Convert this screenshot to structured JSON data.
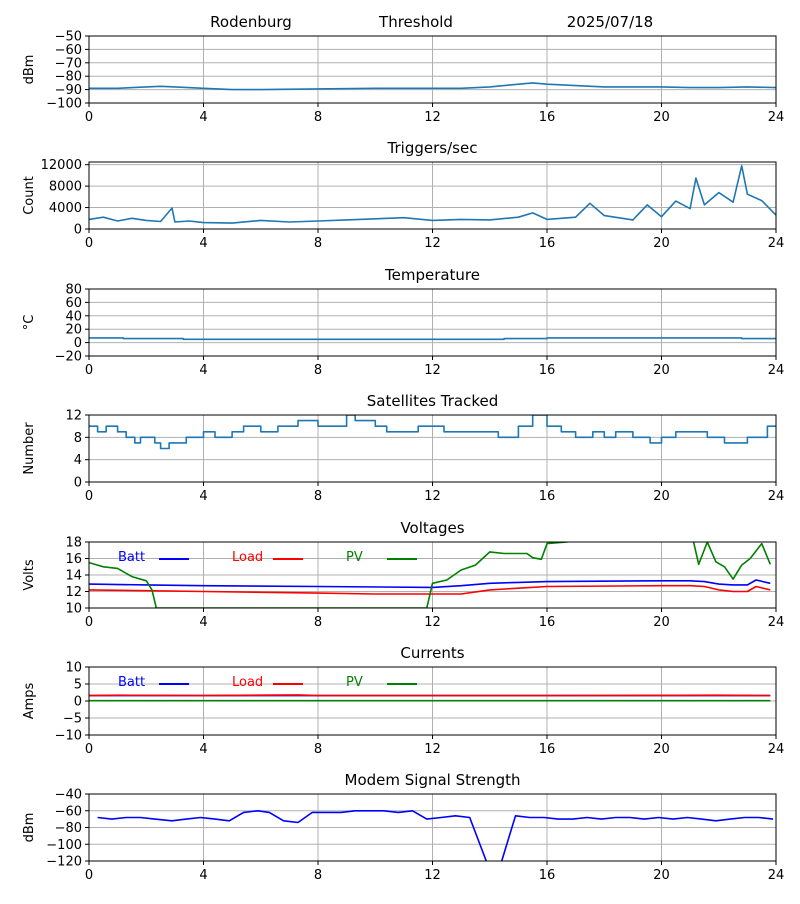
{
  "header": {
    "station": "Rodenburg",
    "mode": "Threshold",
    "date": "2025/07/18"
  },
  "chart_data": [
    {
      "id": "threshold",
      "type": "line",
      "title": "",
      "xlabel": "",
      "ylabel": "dBm",
      "xlim": [
        0,
        24
      ],
      "ylim": [
        -100,
        -50
      ],
      "xticks": [
        0,
        4,
        8,
        12,
        16,
        20,
        24
      ],
      "yticks": [
        -100,
        -90,
        -80,
        -70,
        -60,
        -50
      ],
      "grid": true,
      "series": [
        {
          "color": "#1f77b4",
          "x": [
            0,
            1,
            2,
            2.5,
            3,
            4,
            5,
            6,
            8,
            10,
            12,
            13,
            14,
            15,
            15.5,
            16,
            17,
            18,
            19,
            20,
            21,
            22,
            23,
            24
          ],
          "y": [
            -89,
            -89,
            -88,
            -87.5,
            -88,
            -89,
            -90,
            -90,
            -89.5,
            -89,
            -89,
            -89,
            -88,
            -86,
            -85,
            -86,
            -87,
            -88,
            -88,
            -88,
            -88.5,
            -88.5,
            -88,
            -88.5
          ]
        }
      ]
    },
    {
      "id": "triggers",
      "type": "line",
      "title": "Triggers/sec",
      "xlabel": "",
      "ylabel": "Count",
      "xlim": [
        0,
        24
      ],
      "ylim": [
        0,
        12500
      ],
      "xticks": [
        0,
        4,
        8,
        12,
        16,
        20,
        24
      ],
      "yticks": [
        0,
        4000,
        8000,
        12000
      ],
      "grid": true,
      "series": [
        {
          "color": "#1f77b4",
          "x": [
            0,
            0.5,
            1,
            1.5,
            2,
            2.5,
            2.9,
            3,
            3.5,
            4,
            5,
            6,
            7,
            8,
            9,
            10,
            11,
            12,
            13,
            14,
            15,
            15.5,
            16,
            17,
            17.5,
            18,
            19,
            19.5,
            20,
            20.5,
            21,
            21.2,
            21.5,
            22,
            22.5,
            22.8,
            23,
            23.5,
            24
          ],
          "y": [
            1800,
            2200,
            1500,
            2000,
            1600,
            1400,
            3900,
            1300,
            1500,
            1200,
            1100,
            1600,
            1300,
            1500,
            1700,
            1900,
            2100,
            1600,
            1800,
            1700,
            2200,
            3000,
            1800,
            2200,
            4800,
            2500,
            1700,
            4500,
            2300,
            5200,
            3800,
            9500,
            4500,
            6800,
            5000,
            11800,
            6500,
            5300,
            2600
          ]
        }
      ]
    },
    {
      "id": "temperature",
      "type": "line",
      "title": "Temperature",
      "xlabel": "",
      "ylabel": "°C",
      "xlim": [
        0,
        24
      ],
      "ylim": [
        -20,
        80
      ],
      "xticks": [
        0,
        4,
        8,
        12,
        16,
        20,
        24
      ],
      "yticks": [
        -20,
        0,
        20,
        40,
        60,
        80
      ],
      "grid": true,
      "series": [
        {
          "color": "#1f77b4",
          "x": [
            0,
            1.2,
            1.2,
            3.3,
            3.3,
            14.5,
            14.5,
            16,
            16,
            22.8,
            22.8,
            24
          ],
          "y": [
            7,
            7,
            6,
            6,
            5,
            5,
            6,
            6,
            7,
            7,
            6,
            6
          ]
        }
      ]
    },
    {
      "id": "satellites",
      "type": "line",
      "title": "Satellites Tracked",
      "xlabel": "",
      "ylabel": "Number",
      "xlim": [
        0,
        24
      ],
      "ylim": [
        0,
        12
      ],
      "xticks": [
        0,
        4,
        8,
        12,
        16,
        20,
        24
      ],
      "yticks": [
        0,
        4,
        8,
        12
      ],
      "grid": true,
      "series": [
        {
          "color": "#1f77b4",
          "x": [
            0,
            0.3,
            0.3,
            0.6,
            0.6,
            1,
            1,
            1.3,
            1.3,
            1.6,
            1.6,
            1.8,
            1.8,
            2.3,
            2.3,
            2.5,
            2.5,
            2.8,
            2.8,
            3.4,
            3.4,
            4,
            4,
            4.4,
            4.4,
            5,
            5,
            5.4,
            5.4,
            6,
            6,
            6.6,
            6.6,
            7.3,
            7.3,
            8,
            8,
            9,
            9,
            9.3,
            9.3,
            10,
            10,
            10.4,
            10.4,
            11.5,
            11.5,
            12.4,
            12.4,
            14.3,
            14.3,
            15,
            15,
            15.5,
            15.5,
            16,
            16,
            16.5,
            16.5,
            17,
            17,
            17.6,
            17.6,
            18,
            18,
            18.4,
            18.4,
            19,
            19,
            19.6,
            19.6,
            20,
            20,
            20.5,
            20.5,
            21.6,
            21.6,
            22.2,
            22.2,
            23,
            23,
            23.7,
            23.7,
            24
          ],
          "y": [
            10,
            10,
            9,
            9,
            10,
            10,
            9,
            9,
            8,
            8,
            7,
            7,
            8,
            8,
            7,
            7,
            6,
            6,
            7,
            7,
            8,
            8,
            9,
            9,
            8,
            8,
            9,
            9,
            10,
            10,
            9,
            9,
            10,
            10,
            11,
            11,
            10,
            10,
            12,
            12,
            11,
            11,
            10,
            10,
            9,
            9,
            10,
            10,
            9,
            9,
            8,
            8,
            10,
            10,
            12,
            12,
            10,
            10,
            9,
            9,
            8,
            8,
            9,
            9,
            8,
            8,
            9,
            9,
            8,
            8,
            7,
            7,
            8,
            8,
            9,
            9,
            8,
            8,
            7,
            7,
            8,
            8,
            10,
            10
          ]
        }
      ]
    },
    {
      "id": "voltages",
      "type": "line",
      "title": "Voltages",
      "xlabel": "",
      "ylabel": "Volts",
      "xlim": [
        0,
        24
      ],
      "ylim": [
        10,
        18
      ],
      "xticks": [
        0,
        4,
        8,
        12,
        16,
        20,
        24
      ],
      "yticks": [
        10,
        12,
        14,
        16,
        18
      ],
      "grid": true,
      "legend": {
        "placement": "top-left",
        "layout": "horizontal"
      },
      "series": [
        {
          "name": "Batt",
          "color": "#0000ff",
          "x": [
            0,
            2,
            4,
            8,
            12,
            13,
            14,
            15,
            16,
            20,
            21,
            21.5,
            22,
            22.5,
            23,
            23.3,
            23.8
          ],
          "y": [
            12.9,
            12.8,
            12.7,
            12.6,
            12.5,
            12.7,
            13.0,
            13.1,
            13.2,
            13.3,
            13.3,
            13.2,
            12.9,
            12.8,
            12.8,
            13.4,
            13.0
          ]
        },
        {
          "name": "Load",
          "color": "#ff0000",
          "x": [
            0,
            2,
            4,
            8,
            10,
            13,
            14,
            15,
            16,
            20,
            21,
            21.5,
            22,
            22.5,
            23,
            23.3,
            23.8
          ],
          "y": [
            12.2,
            12.1,
            12.0,
            11.8,
            11.7,
            11.7,
            12.2,
            12.4,
            12.6,
            12.7,
            12.7,
            12.6,
            12.2,
            12.0,
            12.0,
            12.6,
            12.2
          ]
        },
        {
          "name": "PV",
          "color": "#008000",
          "x": [
            0,
            0.5,
            1,
            1.5,
            2,
            2.2,
            2.35,
            11.8,
            12,
            12.5,
            13,
            13.5,
            14,
            14.5,
            15,
            15.3,
            15.5,
            15.8,
            16,
            16.7,
            17,
            20,
            21.1,
            21.3,
            21.6,
            21.9,
            22.2,
            22.5,
            22.8,
            23.1,
            23.5,
            23.8
          ],
          "y": [
            15.5,
            15.0,
            14.8,
            13.8,
            13.3,
            12.2,
            10,
            10,
            13.0,
            13.4,
            14.6,
            15.2,
            16.8,
            16.6,
            16.6,
            16.6,
            16.1,
            15.9,
            17.8,
            18.0,
            18.3,
            18.3,
            18.3,
            15.3,
            18.0,
            15.6,
            15.0,
            13.5,
            15.2,
            16.0,
            17.8,
            15.3
          ]
        }
      ]
    },
    {
      "id": "currents",
      "type": "line",
      "title": "Currents",
      "xlabel": "",
      "ylabel": "Amps",
      "xlim": [
        0,
        24
      ],
      "ylim": [
        -10,
        10
      ],
      "xticks": [
        0,
        4,
        8,
        12,
        16,
        20,
        24
      ],
      "yticks": [
        -10,
        -5,
        0,
        5,
        10
      ],
      "grid": true,
      "legend": {
        "placement": "top-left",
        "layout": "horizontal"
      },
      "series": [
        {
          "name": "Batt",
          "color": "#0000ff",
          "x": [
            0,
            23.8
          ],
          "y": [
            1.6,
            1.6
          ]
        },
        {
          "name": "Load",
          "color": "#ff0000",
          "x": [
            0,
            1,
            4,
            7.3,
            8,
            16,
            22,
            23.8
          ],
          "y": [
            1.6,
            1.7,
            1.6,
            1.8,
            1.6,
            1.6,
            1.7,
            1.6
          ]
        },
        {
          "name": "PV",
          "color": "#008000",
          "x": [
            0,
            23.8
          ],
          "y": [
            0.1,
            0.1
          ]
        }
      ]
    },
    {
      "id": "modem",
      "type": "line",
      "title": "Modem Signal Strength",
      "xlabel": "",
      "ylabel": "dBm",
      "xlim": [
        0,
        24
      ],
      "ylim": [
        -120,
        -40
      ],
      "xticks": [
        0,
        4,
        8,
        12,
        16,
        20,
        24
      ],
      "yticks": [
        -120,
        -100,
        -80,
        -60,
        -40
      ],
      "grid": true,
      "series": [
        {
          "color": "#0000ff",
          "x": [
            0.3,
            0.8,
            1.3,
            1.8,
            2.3,
            2.9,
            3.4,
            3.9,
            4.4,
            4.9,
            5.4,
            5.9,
            6.3,
            6.8,
            7.3,
            7.8,
            8.3,
            8.8,
            9.3,
            9.8,
            10.3,
            10.8,
            11.3,
            11.8,
            12.3,
            12.8,
            13.3,
            13.9,
            14.4,
            14.9,
            15.4,
            15.9,
            16.4,
            16.9,
            17.4,
            17.9,
            18.4,
            18.9,
            19.4,
            19.9,
            20.4,
            20.9,
            21.4,
            21.9,
            22.4,
            22.9,
            23.4,
            23.9
          ],
          "y": [
            -68,
            -70,
            -68,
            -68,
            -70,
            -72,
            -70,
            -68,
            -70,
            -72,
            -62,
            -60,
            -62,
            -72,
            -74,
            -62,
            -62,
            -62,
            -60,
            -60,
            -60,
            -62,
            -60,
            -70,
            -68,
            -66,
            -68,
            -122,
            -122,
            -66,
            -68,
            -68,
            -70,
            -70,
            -68,
            -70,
            -68,
            -68,
            -70,
            -68,
            -70,
            -68,
            -70,
            -72,
            -70,
            -68,
            -68,
            -70
          ]
        }
      ]
    }
  ]
}
